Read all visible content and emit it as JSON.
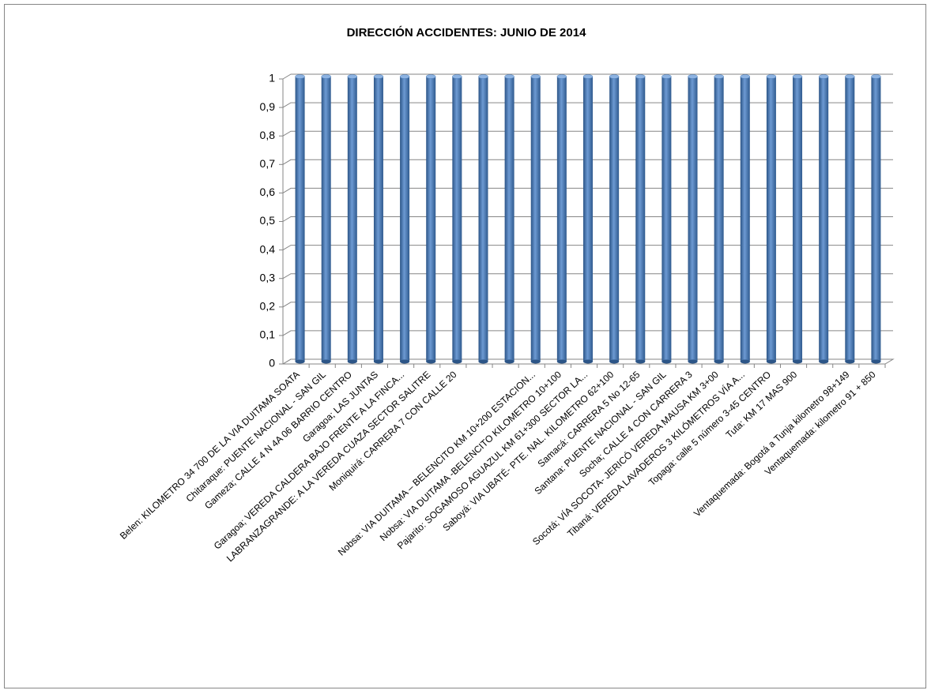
{
  "chart_data": {
    "type": "bar",
    "title": "DIRECCIÓN ACCIDENTES: JUNIO DE 2014",
    "categories": [
      "Belen: KILOMETRO 34 700 DE LA VIA DUITAMA SOATA",
      "Chitaraque: PUENTE NACIONAL - SAN GIL",
      "Gameza; CALLE 4 N 4A  06 BARRIO CENTRO",
      "Garagoa; LAS JUNTAS",
      "Garagoa; VEREDA CALDERA BAJO FRENTE A LA FINCA...",
      "LABRANZAGRANDE:  A LA VEREDA CUAZA SECTOR SALITRE",
      "Moniquirá: CARRERA 7 CON CALLE 20",
      null,
      null,
      "Nobsa: VIA DUITAMA – BELENCITO KM 10+200 ESTACION...",
      "Nobsa: VIA DUITAMA -BELENCITO KILOMETRO 10+100",
      "Pajarito: SOGAMOSO AGUAZUL KM 61+300  SECTOR LA...",
      "Saboyá: VIA UBATÉ- PTE. NAL. KILOMETRO 62+100",
      "Samacá: CARRERA 5 No 12-65",
      "Santana: PUENTE NACIONAL - SAN GIL",
      "Socha; CALLE 4 CON CARRERA 3",
      "Socotá; VÍA SOCOTA-  JERICÓ   VEREDA MAUSA KM 3+00",
      "Tibaná: VEREDA LAVADEROS  3 KILÓMETROS VÍA A...",
      "Topaga: calle 5 número 3-45 CENTRO",
      "Tuta: KM 17 MAS 900",
      null,
      "Ventaquemada: Bogotá a Tunja kilometro 98+149",
      "Ventaquemada: kilometro 91 + 850"
    ],
    "values": [
      1,
      1,
      1,
      1,
      1,
      1,
      1,
      1,
      1,
      1,
      1,
      1,
      1,
      1,
      1,
      1,
      1,
      1,
      1,
      1,
      1,
      1,
      1
    ],
    "color": "#4f81bd",
    "ylim": [
      0,
      1
    ],
    "yticks": [
      0,
      {
        "value": 0.1,
        "label": "0,1"
      },
      {
        "value": 0.2,
        "label": "0,2"
      },
      {
        "value": 0.3,
        "label": "0,3"
      },
      {
        "value": 0.4,
        "label": "0,4"
      },
      {
        "value": 0.5,
        "label": "0,5"
      },
      {
        "value": 0.6,
        "label": "0,6"
      },
      {
        "value": 0.7,
        "label": "0,7"
      },
      {
        "value": 0.8,
        "label": "0,8"
      },
      {
        "value": 0.9,
        "label": "0,9"
      },
      1
    ],
    "grid": true
  }
}
